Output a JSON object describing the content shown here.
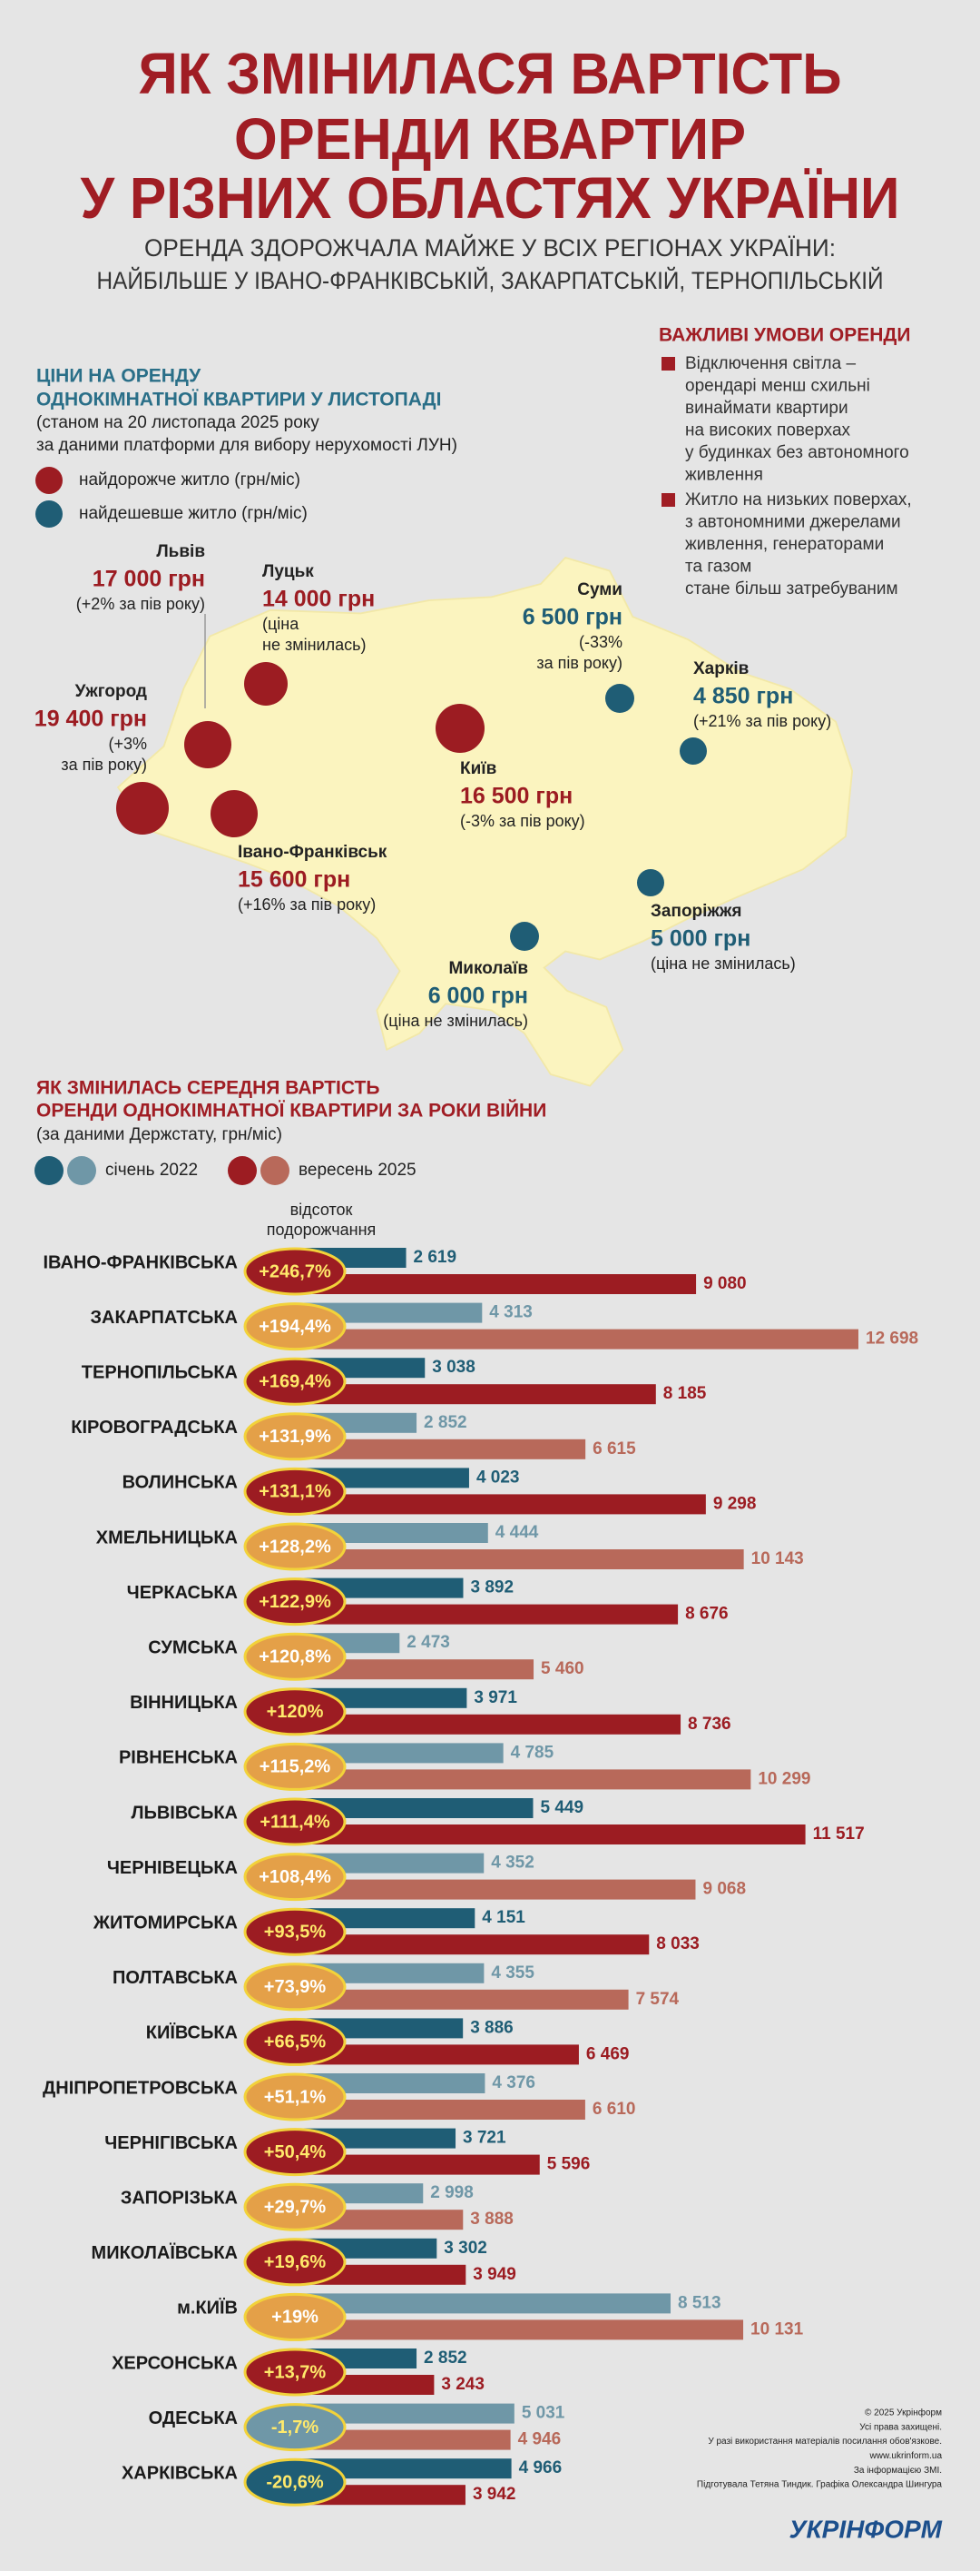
{
  "header": {
    "title": [
      "ЯК ЗМІНИЛАСЯ ВАРТІСТЬ",
      "ОРЕНДИ КВАРТИР",
      "У РІЗНИХ ОБЛАСТЯХ УКРАЇНИ"
    ],
    "subtitle": [
      "ОРЕНДА ЗДОРОЖЧАЛА МАЙЖЕ У ВСІХ РЕГІОНАХ УКРАЇНИ:",
      "НАЙБІЛЬШЕ У ІВАНО-ФРАНКІВСЬКІЙ, ЗАКАРПАТСЬКІЙ, ТЕРНОПІЛЬСЬКІЙ"
    ]
  },
  "map": {
    "title": [
      "ЦІНИ НА ОРЕНДУ",
      "ОДНОКІМНАТНОЇ КВАРТИРИ У ЛИСТОПАДІ"
    ],
    "source": [
      "(станом на 20 листопада 2025 року",
      "за даними платформи для вибору нерухомості ЛУН)"
    ],
    "legend": [
      {
        "label": "найдорожче житло (грн/міс)",
        "color": "#9c1c22"
      },
      {
        "label": "найдешевше житло (грн/міс)",
        "color": "#1f5d75"
      }
    ],
    "cities": [
      {
        "name": "Львів",
        "price": "17 000 грн",
        "note": [
          "(+2% за пів року)"
        ],
        "kind": 0
      },
      {
        "name": "Луцьк",
        "price": "14 000 грн",
        "note": [
          "(ціна",
          "не змінилась)"
        ],
        "kind": 0
      },
      {
        "name": "Ужгород",
        "price": "19 400 грн",
        "note": [
          "(+3%",
          "за пів року)"
        ],
        "kind": 0
      },
      {
        "name": "Івано-Франківськ",
        "price": "15 600 грн",
        "note": [
          "(+16% за пів року)"
        ],
        "kind": 0
      },
      {
        "name": "Київ",
        "price": "16 500 грн",
        "note": [
          "(-3% за пів року)"
        ],
        "kind": 0
      },
      {
        "name": "Суми",
        "price": "6 500 грн",
        "note": [
          "(-33%",
          "за пів року)"
        ],
        "kind": 1
      },
      {
        "name": "Харків",
        "price": "4 850 грн",
        "note": [
          "(+21% за пів року)"
        ],
        "kind": 1
      },
      {
        "name": "Запоріжжя",
        "price": "5 000 грн",
        "note": [
          "(ціна не змінилась)"
        ],
        "kind": 1
      },
      {
        "name": "Миколаїв",
        "price": "6 000 грн",
        "note": [
          "(ціна не змінилась)"
        ],
        "kind": 1
      }
    ]
  },
  "conditions": {
    "title": "ВАЖЛИВІ УМОВИ ОРЕНДИ",
    "items": [
      [
        "Відключення світла –",
        "орендарі менш схильні",
        "винаймати квартири",
        "на високих поверхах",
        "у будинках без автономного",
        "живлення"
      ],
      [
        "Житло на низьких поверхах,",
        "з автономними джерелами",
        "живлення, генераторами",
        "та газом",
        "стане більш затребуваним"
      ]
    ]
  },
  "chart_data": {
    "type": "bar",
    "orientation": "horizontal",
    "title": [
      "ЯК ЗМІНИЛАСЬ СЕРЕДНЯ ВАРТІСТЬ",
      "ОРЕНДИ ОДНОКІМНАТНОЇ КВАРТИРИ ЗА РОКИ ВІЙНИ"
    ],
    "subtitle": "(за даними Держстату, грн/міс)",
    "change_title": [
      "відсоток",
      "подорожчання"
    ],
    "categories": [
      "ІВАНО-ФРАНКІВСЬКА",
      "ЗАКАРПАТСЬКА",
      "ТЕРНОПІЛЬСЬКА",
      "КІРОВОГРАДСЬКА",
      "ВОЛИНСЬКА",
      "ХМЕЛЬНИЦЬКА",
      "ЧЕРКАСЬКА",
      "СУМСЬКА",
      "ВІННИЦЬКА",
      "РІВНЕНСЬКА",
      "ЛЬВІВСЬКА",
      "ЧЕРНІВЕЦЬКА",
      "ЖИТОМИРСЬКА",
      "ПОЛТАВСЬКА",
      "КИЇВСЬКА",
      "ДНІПРОПЕТРОВСЬКА",
      "ЧЕРНІГІВСЬКА",
      "ЗАПОРІЗЬКА",
      "МИКОЛАЇВСЬКА",
      "м.КИЇВ",
      "ХЕРСОНСЬКА",
      "ОДЕСЬКА",
      "ХАРКІВСЬКА"
    ],
    "change_labels": [
      "+246,7%",
      "+194,4%",
      "+169,4%",
      "+131,9%",
      "+131,1%",
      "+128,2%",
      "+122,9%",
      "+120,8%",
      "+120%",
      "+115,2%",
      "+111,4%",
      "+108,4%",
      "+93,5%",
      "+73,9%",
      "+66,5%",
      "+51,1%",
      "+50,4%",
      "+29,7%",
      "+19,6%",
      "+19%",
      "+13,7%",
      "-1,7%",
      "-20,6%"
    ],
    "change_colors": {
      "up": "#9c1c22",
      "up_alt": "#e4a048",
      "down": "#1f5d75",
      "down_alt": "#6f97a7"
    },
    "series": [
      {
        "name": "січень 2022",
        "color": "#1f5d75",
        "alt_color": "#6f97a7",
        "values": [
          2619,
          4313,
          3038,
          2852,
          4023,
          4444,
          3892,
          2473,
          3971,
          4785,
          5449,
          4352,
          4151,
          4355,
          3886,
          4376,
          3721,
          2998,
          3302,
          8513,
          2852,
          5031,
          4966
        ],
        "value_labels": [
          "2 619",
          "4 313",
          "3 038",
          "2 852",
          "4 023",
          "4 444",
          "3 892",
          "2 473",
          "3 971",
          "4 785",
          "5 449",
          "4 352",
          "4 151",
          "4 355",
          "3 886",
          "4 376",
          "3 721",
          "2 998",
          "3 302",
          "8 513",
          "2 852",
          "5 031",
          "4 966"
        ]
      },
      {
        "name": "вересень 2025",
        "color": "#9c1c22",
        "alt_color": "#b8695a",
        "values": [
          9080,
          12698,
          8185,
          6615,
          9298,
          10143,
          8676,
          5460,
          8736,
          10299,
          11517,
          9068,
          8033,
          7574,
          6469,
          6610,
          5596,
          3888,
          3949,
          10131,
          3243,
          4946,
          3942
        ],
        "value_labels": [
          "9 080",
          "12 698",
          "8 185",
          "6 615",
          "9 298",
          "10 143",
          "8 676",
          "5 460",
          "8 736",
          "10 299",
          "11 517",
          "9 068",
          "8 033",
          "7 574",
          "6 469",
          "6 610",
          "5 596",
          "3 888",
          "3 949",
          "10 131",
          "3 243",
          "4 946",
          "3 942"
        ]
      }
    ]
  },
  "footer": {
    "credits": [
      "© 2025 Укрінформ",
      "Усі права захищені.",
      "У разі використання матеріалів посилання обов'язкове.",
      "www.ukrinform.ua",
      "За інформацією ЗМІ.",
      "Підготувала Тетяна Тиндик. Графіка Олександра Шингура"
    ],
    "logo": "УКРІНФОРМ"
  }
}
